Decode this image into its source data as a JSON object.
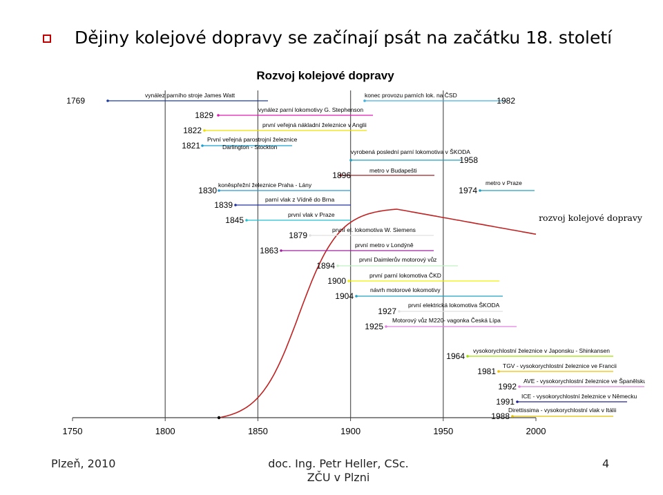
{
  "slide": {
    "title": "Dějiny kolejové dopravy se začínají psát na začátku 18. století",
    "footer": {
      "left": "Plzeň, 2010",
      "center_line1": "doc. Ing. Petr Heller, CSc.",
      "center_line2": "ZČU v Plzni",
      "page": "4"
    }
  },
  "chart_data": {
    "type": "timeline",
    "title": "Rozvoj kolejové dopravy",
    "curve_label": "rozvoj kolejové dopravy",
    "x_ticks": [
      "1750",
      "1800",
      "1850",
      "1900",
      "1950",
      "2000"
    ],
    "xlim": [
      1750,
      2000
    ],
    "grid_years": [
      1800,
      1850,
      1900,
      1950
    ],
    "events": [
      {
        "year": "1769",
        "text": "vynález parního stroje James Watt",
        "color": "#1a3aa0"
      },
      {
        "year": "1829",
        "text": "vynález parní lokomotivy G. Stephenson",
        "color": "#e01ab0"
      },
      {
        "year": "1822",
        "text": "první veřejná nákladní železnice v Anglii",
        "color": "#f0e000"
      },
      {
        "year": "1821",
        "text": "První veřejná parostrojní železnice Darlington - Stockton",
        "color": "#1aa0d0"
      },
      {
        "year": "1830",
        "text": "koněspřežní železnice Praha - Lány",
        "color": "#2a9ad0"
      },
      {
        "year": "1839",
        "text": "parní vlak z Vídně do Brna",
        "color": "#2030a0"
      },
      {
        "year": "1845",
        "text": "první vlak v Praze",
        "color": "#20c0d0"
      },
      {
        "year": "1863",
        "text": "první metro v Londýně",
        "color": "#a020a0"
      },
      {
        "year": "1879",
        "text": "první el. lokomotiva W. Siemens",
        "color": "#e0e0e0"
      },
      {
        "year": "1894",
        "text": "první Daimlerův motorový vůz",
        "color": "#c0f0c0"
      },
      {
        "year": "1896",
        "text": "metro v Budapešti",
        "color": "#a02020"
      },
      {
        "year": "1900",
        "text": "první parní lokomotiva ČKD",
        "color": "#f0f000"
      },
      {
        "year": "1904",
        "text": "návrh motorové lokomotivy",
        "color": "#20a0c0"
      },
      {
        "year": "1925",
        "text": "Motorový vůz M220- vagonka Česká Lípa",
        "color": "#e080e0"
      },
      {
        "year": "1927",
        "text": "první elektrická lokomotiva ŠKODA",
        "color": "#e0e0e0"
      },
      {
        "year": "1958",
        "text": "vyrobená poslední parní lokomotiva v ŠKODA",
        "color": "#20a0c0"
      },
      {
        "year": "1964",
        "text": "vysokorychlostní železnice v Japonsku - Shinkansen",
        "color": "#a0e000"
      },
      {
        "year": "1974",
        "text": "metro v Praze",
        "color": "#20a0c0"
      },
      {
        "year": "1981",
        "text": "TGV - vysokorychlostní železnice ve Francii",
        "color": "#f0c000"
      },
      {
        "year": "1982",
        "text": "konec provozu parních lok. na ČSD",
        "color": "#40b0e0"
      },
      {
        "year": "1988",
        "text": "Direttissima - vysokorychlostní vlak v Itálii",
        "color": "#e0c000"
      },
      {
        "year": "1991",
        "text": "ICE - vysokorychlostní železnice v Německu",
        "color": "#202090"
      },
      {
        "year": "1992",
        "text": "AVE - vysokorychlostní železnice ve Španělsku",
        "color": "#e080e0"
      }
    ],
    "curve": {
      "start_year": 1829,
      "peak_year": 1925,
      "end_year": 2000,
      "color": "#c02020"
    }
  }
}
